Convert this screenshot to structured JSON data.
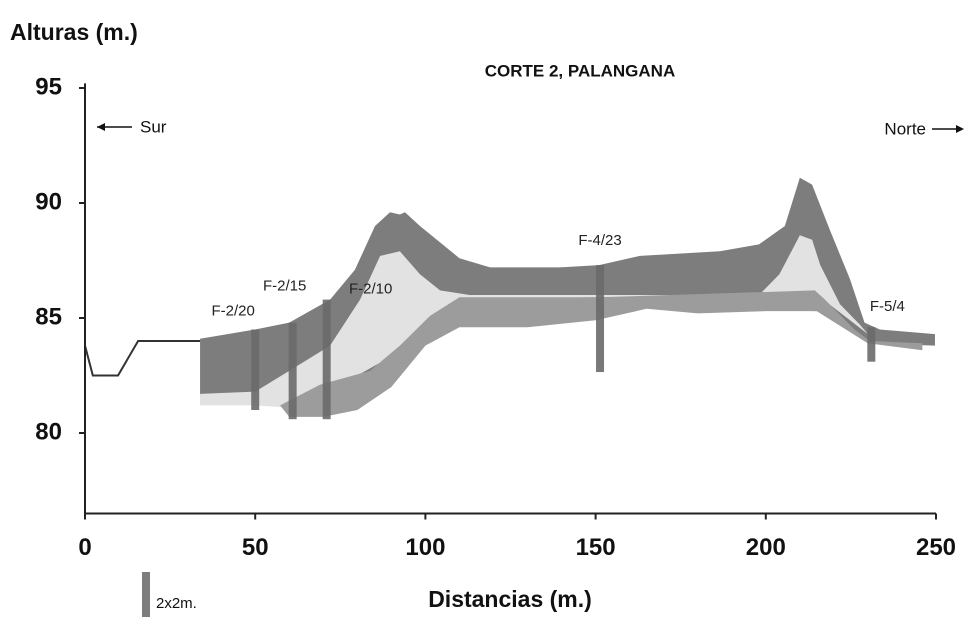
{
  "chart_data": {
    "type": "area",
    "title": "CORTE 2, PALANGANA",
    "y_label": "Alturas (m.)",
    "x_label": "Distancias (m.)",
    "left_direction": "Sur",
    "right_direction": "Norte",
    "legend_label": "2x2m.",
    "xlim": [
      0,
      250
    ],
    "xticks": [
      0,
      50,
      100,
      150,
      200,
      250
    ],
    "ylim": [
      76.5,
      95.2
    ],
    "yticks": [
      80,
      85,
      90,
      95
    ],
    "ground": {
      "type": "line",
      "color": "#333333",
      "x": [
        0,
        2.3,
        9.7,
        15.6,
        33.8
      ],
      "values": [
        83.8,
        82.5,
        82.5,
        84.0,
        84.0
      ]
    },
    "series": [
      {
        "color": "#7d7d7d",
        "x": [
          33.8,
          50,
          60,
          72,
          79.3,
          85.2,
          89.6,
          92.5,
          94,
          98.4,
          110,
          119,
          139.5,
          151,
          163,
          186.5,
          198,
          205.6,
          210,
          213.6,
          218.9,
          224.7,
          229,
          233.5,
          249.7,
          249.7,
          230,
          215,
          150,
          110,
          95,
          80,
          60,
          33.8
        ],
        "values": [
          84.1,
          84.5,
          84.8,
          85.8,
          87.1,
          89.0,
          89.6,
          89.5,
          89.6,
          89.0,
          87.6,
          87.2,
          87.2,
          87.3,
          87.7,
          87.9,
          88.2,
          89.0,
          91.1,
          90.8,
          88.8,
          86.7,
          84.8,
          84.5,
          84.3,
          83.8,
          83.9,
          85.3,
          85.5,
          85.5,
          83.5,
          81.5,
          81.6,
          81.6
        ]
      },
      {
        "color": "#e2e2e2",
        "x": [
          33.8,
          50,
          60,
          72,
          80.8,
          86.7,
          92.5,
          98.4,
          104.3,
          113,
          151,
          198,
          204,
          210,
          213.6,
          216,
          221.8,
          227.7,
          230,
          216,
          150,
          110,
          100,
          92,
          80,
          60,
          50,
          33.8
        ],
        "values": [
          81.7,
          81.8,
          82.7,
          83.8,
          85.8,
          87.7,
          87.9,
          86.9,
          86.2,
          86.0,
          86.0,
          86.0,
          86.9,
          88.6,
          88.4,
          87.3,
          85.6,
          84.7,
          84.3,
          85.9,
          85.9,
          85.8,
          84.8,
          83.5,
          82.5,
          81.1,
          81.2,
          81.2
        ]
      },
      {
        "color": "#9c9c9c",
        "x": [
          57.3,
          69,
          83.7,
          92.5,
          101.4,
          110,
          151,
          214.4,
          217.4,
          226,
          230.6,
          246,
          246,
          230,
          215,
          200,
          180,
          165,
          150,
          130,
          110,
          100,
          90,
          80,
          70,
          60
        ],
        "values": [
          81.2,
          82.1,
          82.7,
          83.8,
          85.1,
          85.9,
          85.9,
          86.2,
          85.8,
          84.5,
          84.0,
          83.9,
          83.6,
          83.9,
          85.3,
          85.3,
          85.2,
          85.4,
          84.9,
          84.6,
          84.6,
          83.8,
          82.0,
          81.0,
          80.7,
          80.7
        ]
      }
    ],
    "boreholes": {
      "color": "#6a6a6a",
      "labels": [
        "F-2/20",
        "F-2/15",
        "F-2/10",
        "F-4/23",
        "F-5/4"
      ],
      "x": [
        50,
        61,
        71,
        151.3,
        231
      ],
      "top": [
        84.5,
        84.8,
        85.8,
        87.3,
        84.6
      ],
      "bottom": [
        81.0,
        80.6,
        80.6,
        82.65,
        83.1
      ]
    }
  }
}
